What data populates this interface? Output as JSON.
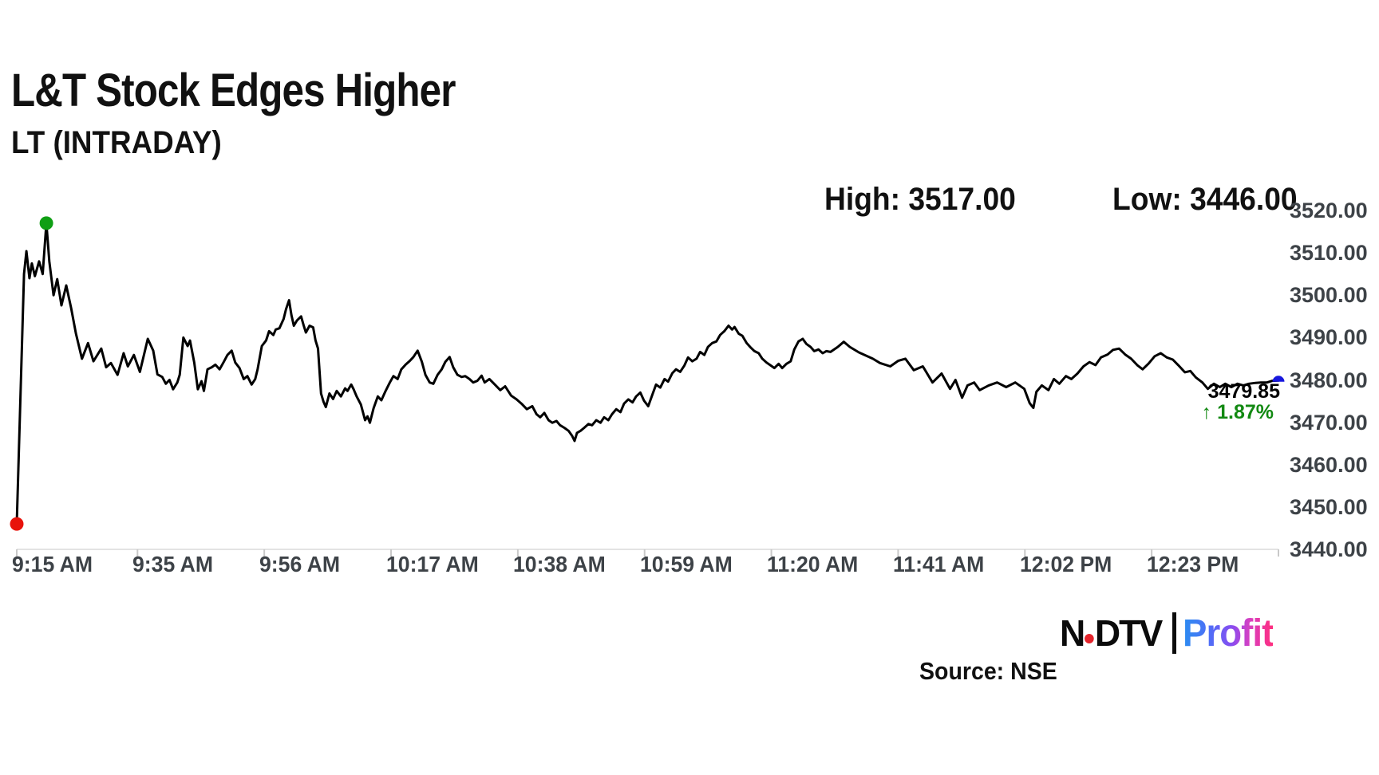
{
  "header": {
    "title": "L&T Stock Edges Higher",
    "subtitle": "LT (INTRADAY)"
  },
  "stats": {
    "high_text": "High: 3517.00",
    "low_text": "Low: 3446.00"
  },
  "last_quote": {
    "price": "3479.85",
    "arrow": "↑",
    "change": "1.87%",
    "change_color": "#128912"
  },
  "source": {
    "text": "Source: NSE"
  },
  "logo": {
    "ndtv_left": "N",
    "ndtv_right": "DTV",
    "profit": "Profit",
    "dot_color": "#e4232b"
  },
  "chart_data": {
    "type": "line",
    "title": "LT (INTRADAY)",
    "symbol": "LT",
    "session_high": 3517.0,
    "session_low": 3446.0,
    "last_price": 3479.85,
    "change_percent": 1.87,
    "x_unit": "minutes since 9:15 AM",
    "x_end_minutes": 209,
    "ylim": [
      3440,
      3520
    ],
    "y_tick_step": 10,
    "y_tick_labels": [
      "3520.00",
      "3510.00",
      "3500.00",
      "3490.00",
      "3480.00",
      "3470.00",
      "3460.00",
      "3450.00",
      "3440.00"
    ],
    "x_ticks": [
      {
        "label": "9:15 AM",
        "t": 0
      },
      {
        "label": "9:35 AM",
        "t": 20
      },
      {
        "label": "9:56 AM",
        "t": 41
      },
      {
        "label": "10:17 AM",
        "t": 62
      },
      {
        "label": "10:38 AM",
        "t": 83
      },
      {
        "label": "10:59 AM",
        "t": 104
      },
      {
        "label": "11:20 AM",
        "t": 125
      },
      {
        "label": "11:41 AM",
        "t": 146
      },
      {
        "label": "12:02 PM",
        "t": 167
      },
      {
        "label": "12:23 PM",
        "t": 188
      }
    ],
    "grid": false,
    "legend": false,
    "line_color": "#000000",
    "axis_color": "#e3e3e3",
    "tick_color": "#c9c9c9",
    "markers": [
      {
        "name": "session-low-dot",
        "t": 0,
        "value": 3446,
        "color": "#e8130b",
        "shape": "circle"
      },
      {
        "name": "session-high-dot",
        "t": 4.9,
        "value": 3517,
        "color": "#0f9f14",
        "shape": "circle"
      },
      {
        "name": "last-price-dot",
        "t": 209,
        "value": 3479.85,
        "color": "#1717dd",
        "shape": "semicircle"
      }
    ],
    "points": [
      [
        0,
        3446
      ],
      [
        1.2,
        3505
      ],
      [
        1.6,
        3510.4
      ],
      [
        2.1,
        3504
      ],
      [
        2.5,
        3507.5
      ],
      [
        3,
        3504.5
      ],
      [
        3.7,
        3508
      ],
      [
        4.3,
        3505
      ],
      [
        4.9,
        3517
      ],
      [
        5.4,
        3508
      ],
      [
        6.1,
        3500
      ],
      [
        6.7,
        3503.8
      ],
      [
        7.4,
        3497.6
      ],
      [
        8.2,
        3502.3
      ],
      [
        9,
        3497
      ],
      [
        9.8,
        3491
      ],
      [
        10.8,
        3485
      ],
      [
        11.8,
        3488.7
      ],
      [
        12.7,
        3484.4
      ],
      [
        14,
        3487.4
      ],
      [
        14.8,
        3483
      ],
      [
        15.6,
        3484
      ],
      [
        16.7,
        3481.2
      ],
      [
        17.7,
        3486.3
      ],
      [
        18.4,
        3483.2
      ],
      [
        19.4,
        3485.9
      ],
      [
        20.4,
        3481.9
      ],
      [
        21.7,
        3489.7
      ],
      [
        22.6,
        3486.9
      ],
      [
        23.3,
        3481.3
      ],
      [
        24.1,
        3480.7
      ],
      [
        24.7,
        3479.1
      ],
      [
        25.3,
        3480
      ],
      [
        25.9,
        3477.8
      ],
      [
        26.6,
        3479.4
      ],
      [
        27,
        3481.2
      ],
      [
        27.6,
        3490
      ],
      [
        28.3,
        3488
      ],
      [
        28.7,
        3489.3
      ],
      [
        29.4,
        3484.1
      ],
      [
        30,
        3477.8
      ],
      [
        30.6,
        3479.7
      ],
      [
        31,
        3477.4
      ],
      [
        31.6,
        3482.5
      ],
      [
        32.3,
        3483
      ],
      [
        32.9,
        3483.6
      ],
      [
        33.6,
        3482.5
      ],
      [
        34.3,
        3484.3
      ],
      [
        34.9,
        3485.9
      ],
      [
        35.6,
        3486.9
      ],
      [
        36.2,
        3484.1
      ],
      [
        36.9,
        3482.8
      ],
      [
        37.6,
        3480.2
      ],
      [
        38.2,
        3480.9
      ],
      [
        38.9,
        3478.9
      ],
      [
        39.5,
        3480.2
      ],
      [
        39.9,
        3482.5
      ],
      [
        40.6,
        3488
      ],
      [
        41.3,
        3489.3
      ],
      [
        41.8,
        3491.5
      ],
      [
        42.5,
        3490.6
      ],
      [
        42.9,
        3491.9
      ],
      [
        43.5,
        3492.2
      ],
      [
        44.2,
        3494.4
      ],
      [
        44.6,
        3496.7
      ],
      [
        45.1,
        3498.8
      ],
      [
        45.5,
        3495.3
      ],
      [
        45.9,
        3492.8
      ],
      [
        46.4,
        3494
      ],
      [
        47.1,
        3495
      ],
      [
        47.5,
        3493
      ],
      [
        47.9,
        3491.2
      ],
      [
        48.5,
        3492.8
      ],
      [
        49.1,
        3492.4
      ],
      [
        49.5,
        3489.3
      ],
      [
        49.9,
        3487.4
      ],
      [
        50.4,
        3476.8
      ],
      [
        50.8,
        3474.9
      ],
      [
        51.2,
        3473.6
      ],
      [
        51.8,
        3476.8
      ],
      [
        52.4,
        3475.5
      ],
      [
        53,
        3477.4
      ],
      [
        53.7,
        3476.1
      ],
      [
        54.4,
        3478
      ],
      [
        54.8,
        3477.4
      ],
      [
        55.4,
        3478.9
      ],
      [
        55.8,
        3477.8
      ],
      [
        56.3,
        3476.1
      ],
      [
        57,
        3474.2
      ],
      [
        57.7,
        3470.5
      ],
      [
        58.1,
        3471.4
      ],
      [
        58.5,
        3469.9
      ],
      [
        59.1,
        3473.3
      ],
      [
        59.8,
        3476.1
      ],
      [
        60.4,
        3475.2
      ],
      [
        61.1,
        3477.4
      ],
      [
        61.8,
        3479.4
      ],
      [
        62.4,
        3480.9
      ],
      [
        63.1,
        3480.2
      ],
      [
        63.7,
        3482.5
      ],
      [
        64.4,
        3483.6
      ],
      [
        65.1,
        3484.5
      ],
      [
        65.7,
        3485.4
      ],
      [
        66.4,
        3486.9
      ],
      [
        67.1,
        3484.3
      ],
      [
        67.7,
        3481.2
      ],
      [
        68.4,
        3479.4
      ],
      [
        69,
        3479.1
      ],
      [
        69.7,
        3481.2
      ],
      [
        70.4,
        3482.5
      ],
      [
        71,
        3484.3
      ],
      [
        71.7,
        3485.4
      ],
      [
        72.3,
        3483
      ],
      [
        73,
        3481.2
      ],
      [
        73.7,
        3480.7
      ],
      [
        74.3,
        3480.9
      ],
      [
        75,
        3480.2
      ],
      [
        75.6,
        3479.4
      ],
      [
        76.3,
        3479.8
      ],
      [
        77,
        3481
      ],
      [
        77.5,
        3479.4
      ],
      [
        78.3,
        3480.2
      ],
      [
        79.2,
        3478.9
      ],
      [
        80.1,
        3477.6
      ],
      [
        80.9,
        3478.5
      ],
      [
        81.9,
        3476.3
      ],
      [
        82.8,
        3475.4
      ],
      [
        83.6,
        3474.4
      ],
      [
        84.5,
        3473.1
      ],
      [
        85.4,
        3473.8
      ],
      [
        86.1,
        3471.9
      ],
      [
        86.7,
        3471.2
      ],
      [
        87.4,
        3472.2
      ],
      [
        88.1,
        3470.5
      ],
      [
        88.7,
        3469.9
      ],
      [
        89.4,
        3470.3
      ],
      [
        90,
        3469.3
      ],
      [
        90.7,
        3468.7
      ],
      [
        91.4,
        3468
      ],
      [
        92,
        3466.8
      ],
      [
        92.4,
        3465.6
      ],
      [
        92.8,
        3467.5
      ],
      [
        93.4,
        3468
      ],
      [
        94,
        3468.7
      ],
      [
        94.7,
        3469.6
      ],
      [
        95.3,
        3469.3
      ],
      [
        96,
        3470.5
      ],
      [
        96.7,
        3469.9
      ],
      [
        97.3,
        3471.2
      ],
      [
        98,
        3470.5
      ],
      [
        98.6,
        3471.9
      ],
      [
        99.3,
        3473.1
      ],
      [
        100,
        3472.4
      ],
      [
        100.6,
        3474.4
      ],
      [
        101.3,
        3475.4
      ],
      [
        102,
        3474.7
      ],
      [
        102.6,
        3476.1
      ],
      [
        103.3,
        3477
      ],
      [
        103.9,
        3475.1
      ],
      [
        104.6,
        3473.8
      ],
      [
        105.3,
        3476.6
      ],
      [
        105.9,
        3478.9
      ],
      [
        106.6,
        3478.2
      ],
      [
        107.3,
        3480.2
      ],
      [
        107.9,
        3479.6
      ],
      [
        108.6,
        3481.6
      ],
      [
        109.2,
        3482.5
      ],
      [
        109.9,
        3481.9
      ],
      [
        110.6,
        3483.4
      ],
      [
        111.2,
        3485.3
      ],
      [
        111.9,
        3484.4
      ],
      [
        112.6,
        3485
      ],
      [
        113.2,
        3486.6
      ],
      [
        113.9,
        3485.9
      ],
      [
        114.5,
        3487.8
      ],
      [
        115.2,
        3488.7
      ],
      [
        115.9,
        3489.1
      ],
      [
        116.5,
        3490.6
      ],
      [
        117.2,
        3491.5
      ],
      [
        117.9,
        3492.8
      ],
      [
        118.5,
        3491.9
      ],
      [
        118.9,
        3492.5
      ],
      [
        119.6,
        3490.9
      ],
      [
        120.2,
        3490.4
      ],
      [
        120.9,
        3488.7
      ],
      [
        121.6,
        3487.6
      ],
      [
        122.2,
        3486.8
      ],
      [
        122.9,
        3486.3
      ],
      [
        123.5,
        3485
      ],
      [
        124.2,
        3484.1
      ],
      [
        124.9,
        3483.4
      ],
      [
        125.5,
        3482.8
      ],
      [
        126.2,
        3483.8
      ],
      [
        126.8,
        3482.8
      ],
      [
        127.5,
        3483.8
      ],
      [
        128.2,
        3484.4
      ],
      [
        128.8,
        3487.2
      ],
      [
        129.5,
        3489.1
      ],
      [
        130.2,
        3489.7
      ],
      [
        130.8,
        3488.5
      ],
      [
        131.5,
        3487.8
      ],
      [
        132.1,
        3486.8
      ],
      [
        132.8,
        3487.2
      ],
      [
        133.5,
        3486.3
      ],
      [
        134.1,
        3486.8
      ],
      [
        134.8,
        3486.6
      ],
      [
        136,
        3487.8
      ],
      [
        137,
        3489
      ],
      [
        138,
        3487.8
      ],
      [
        139.5,
        3486.5
      ],
      [
        141.8,
        3485
      ],
      [
        143,
        3484
      ],
      [
        144.7,
        3483.2
      ],
      [
        146,
        3484.5
      ],
      [
        147.2,
        3485
      ],
      [
        148.6,
        3482.3
      ],
      [
        150.1,
        3483.2
      ],
      [
        151.7,
        3479.4
      ],
      [
        153.2,
        3481.5
      ],
      [
        154.6,
        3477.9
      ],
      [
        155.5,
        3480
      ],
      [
        156.6,
        3475.8
      ],
      [
        157.5,
        3478.7
      ],
      [
        158.6,
        3479.4
      ],
      [
        159.5,
        3477.6
      ],
      [
        161,
        3478.7
      ],
      [
        162.4,
        3479.4
      ],
      [
        163.9,
        3478.3
      ],
      [
        165.4,
        3479.4
      ],
      [
        166.9,
        3477.9
      ],
      [
        167.8,
        3474.5
      ],
      [
        168.4,
        3473.4
      ],
      [
        168.9,
        3477.2
      ],
      [
        169.8,
        3478.7
      ],
      [
        170.9,
        3477.6
      ],
      [
        171.8,
        3480.2
      ],
      [
        172.7,
        3479.1
      ],
      [
        173.8,
        3480.9
      ],
      [
        174.7,
        3480.2
      ],
      [
        175.7,
        3481.5
      ],
      [
        176.7,
        3483.2
      ],
      [
        177.7,
        3484.2
      ],
      [
        178.7,
        3483.5
      ],
      [
        179.6,
        3485.3
      ],
      [
        180.7,
        3486
      ],
      [
        181.6,
        3487.1
      ],
      [
        182.6,
        3487.4
      ],
      [
        183.6,
        3486
      ],
      [
        184.6,
        3485
      ],
      [
        185.6,
        3483.5
      ],
      [
        186.5,
        3482.5
      ],
      [
        187.5,
        3483.9
      ],
      [
        188.5,
        3485.6
      ],
      [
        189.5,
        3486.3
      ],
      [
        190.5,
        3485.3
      ],
      [
        191.5,
        3484.8
      ],
      [
        192.4,
        3483.5
      ],
      [
        193.5,
        3481.8
      ],
      [
        194.4,
        3482.1
      ],
      [
        195.3,
        3480.6
      ],
      [
        196.4,
        3479.4
      ],
      [
        197.3,
        3477.9
      ],
      [
        198.3,
        3479.1
      ],
      [
        199.3,
        3478.3
      ],
      [
        200.2,
        3479.1
      ],
      [
        201.2,
        3478.3
      ],
      [
        202.2,
        3479.1
      ],
      [
        203.2,
        3478.7
      ],
      [
        204.1,
        3479.1
      ],
      [
        205.2,
        3479.3
      ],
      [
        206.1,
        3479.4
      ],
      [
        207.1,
        3479.4
      ],
      [
        208,
        3479.8
      ],
      [
        209,
        3479.85
      ]
    ]
  }
}
